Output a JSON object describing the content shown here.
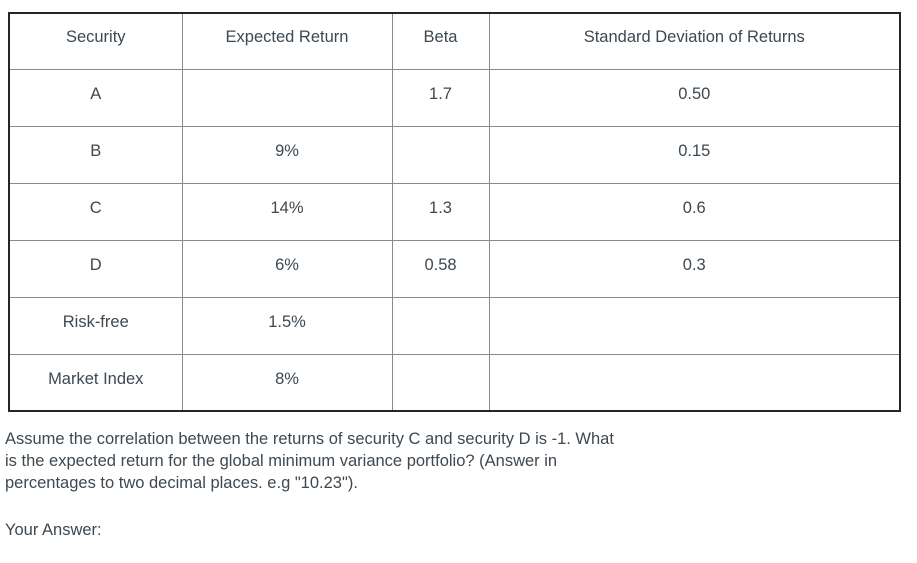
{
  "colors": {
    "text": "#3e4850",
    "outer_border": "#262626",
    "inner_border": "#8a8a8a",
    "background": "#ffffff"
  },
  "table": {
    "headers": [
      "Security",
      "Expected Return",
      "Beta",
      "Standard Deviation of Returns"
    ],
    "rows": [
      {
        "security": "A",
        "expected_return": "",
        "beta": "1.7",
        "std_dev": "0.50"
      },
      {
        "security": "B",
        "expected_return": "9%",
        "beta": "",
        "std_dev": "0.15"
      },
      {
        "security": "C",
        "expected_return": "14%",
        "beta": "1.3",
        "std_dev": "0.6"
      },
      {
        "security": "D",
        "expected_return": "6%",
        "beta": "0.58",
        "std_dev": "0.3"
      },
      {
        "security": "Risk-free",
        "expected_return": "1.5%",
        "beta": "",
        "std_dev": ""
      },
      {
        "security": "Market Index",
        "expected_return": "8%",
        "beta": "",
        "std_dev": ""
      }
    ]
  },
  "question": {
    "lines": [
      "Assume the correlation between the returns of security C and security D is -1. What",
      "is the expected return for the global minimum variance portfolio? (Answer in",
      "percentages to two decimal places. e.g \"10.23\")."
    ],
    "answer_label": "Your Answer:"
  }
}
